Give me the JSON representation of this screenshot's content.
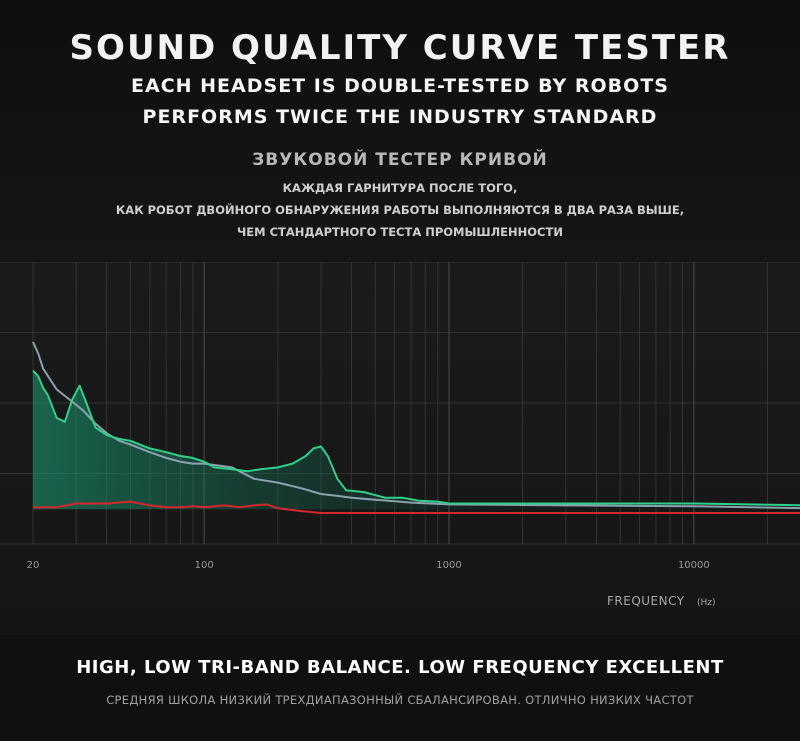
{
  "header": {
    "title": "SOUND QUALITY CURVE TESTER",
    "line1": "EACH HEADSET IS DOUBLE-TESTED BY ROBOTS",
    "line2": "PERFORMS TWICE THE INDUSTRY STANDARD",
    "ru_title": "ЗВУКОВОЙ ТЕСТЕР КРИВОЙ",
    "ru_line1": "КАЖДАЯ ГАРНИТУРА ПОСЛЕ ТОГО,",
    "ru_line2": "КАК РОБОТ ДВОЙНОГО ОБНАРУЖЕНИЯ РАБОТЫ ВЫПОЛНЯЮТСЯ В ДВА РАЗА ВЫШЕ,",
    "ru_line3": "ЧЕМ СТАНДАРТНОГО ТЕСТА ПРОМЫШЛЕННОСТИ"
  },
  "footer": {
    "en": "HIGH, LOW TRI-BAND BALANCE. LOW FREQUENCY EXCELLENT",
    "ru": "СРЕДНЯЯ ШКОЛА НИЗКИЙ ТРЕХДИАПАЗОННЫЙ СБАЛАНСИРОВАН. ОТЛИЧНО НИЗКИХ ЧАСТОТ"
  },
  "colors": {
    "green": "#2fd08a",
    "gray": "#8aa2ae",
    "red": "#d6262c",
    "grid": "#3a3a3a"
  },
  "chart_data": {
    "type": "line",
    "xscale": "log",
    "xlim": [
      20,
      30000
    ],
    "ylim": [
      0,
      100
    ],
    "grid": true,
    "x_ticks": [
      "20",
      "100",
      "1000",
      "10000"
    ],
    "xlabel": "FREQUENCY",
    "xunit": "(Hz)",
    "series": [
      {
        "key": "gray",
        "points": [
          [
            20,
            100
          ],
          [
            21,
            94
          ],
          [
            22,
            86
          ],
          [
            25,
            75
          ],
          [
            28,
            70
          ],
          [
            32,
            64
          ],
          [
            36,
            57
          ],
          [
            40,
            52
          ],
          [
            45,
            48
          ],
          [
            50,
            46
          ],
          [
            60,
            42
          ],
          [
            70,
            39
          ],
          [
            80,
            37
          ],
          [
            90,
            36
          ],
          [
            100,
            36
          ],
          [
            130,
            34
          ],
          [
            160,
            28
          ],
          [
            200,
            26
          ],
          [
            250,
            23
          ],
          [
            300,
            20
          ],
          [
            350,
            19
          ],
          [
            400,
            18
          ],
          [
            500,
            17
          ],
          [
            700,
            15.5
          ],
          [
            1000,
            14.5
          ],
          [
            3000,
            14
          ],
          [
            10000,
            13.5
          ],
          [
            30000,
            12.5
          ]
        ]
      },
      {
        "key": "green",
        "points": [
          [
            20,
            85
          ],
          [
            21,
            82
          ],
          [
            22,
            76
          ],
          [
            23,
            72
          ],
          [
            25,
            60
          ],
          [
            27,
            58
          ],
          [
            29,
            70
          ],
          [
            31,
            77
          ],
          [
            33,
            68
          ],
          [
            36,
            55
          ],
          [
            40,
            51
          ],
          [
            45,
            49
          ],
          [
            50,
            48
          ],
          [
            60,
            44
          ],
          [
            70,
            42
          ],
          [
            80,
            40
          ],
          [
            90,
            39
          ],
          [
            100,
            37
          ],
          [
            110,
            34
          ],
          [
            130,
            33
          ],
          [
            150,
            32
          ],
          [
            170,
            33
          ],
          [
            200,
            34
          ],
          [
            230,
            36
          ],
          [
            260,
            40
          ],
          [
            280,
            44
          ],
          [
            300,
            45
          ],
          [
            320,
            40
          ],
          [
            350,
            28
          ],
          [
            380,
            22
          ],
          [
            450,
            21
          ],
          [
            550,
            18
          ],
          [
            650,
            18
          ],
          [
            750,
            16.5
          ],
          [
            900,
            16
          ],
          [
            1000,
            15
          ],
          [
            3000,
            15
          ],
          [
            10000,
            15
          ],
          [
            30000,
            14
          ]
        ]
      },
      {
        "key": "red",
        "points": [
          [
            20,
            13
          ],
          [
            25,
            13
          ],
          [
            30,
            15
          ],
          [
            40,
            15
          ],
          [
            50,
            16
          ],
          [
            60,
            14
          ],
          [
            70,
            13
          ],
          [
            80,
            13
          ],
          [
            90,
            13.5
          ],
          [
            100,
            13
          ],
          [
            120,
            14
          ],
          [
            140,
            13
          ],
          [
            160,
            14
          ],
          [
            180,
            14.5
          ],
          [
            200,
            12.5
          ],
          [
            250,
            11
          ],
          [
            300,
            10
          ],
          [
            400,
            10
          ],
          [
            1000,
            10
          ],
          [
            10000,
            10
          ],
          [
            30000,
            10
          ]
        ]
      }
    ]
  }
}
